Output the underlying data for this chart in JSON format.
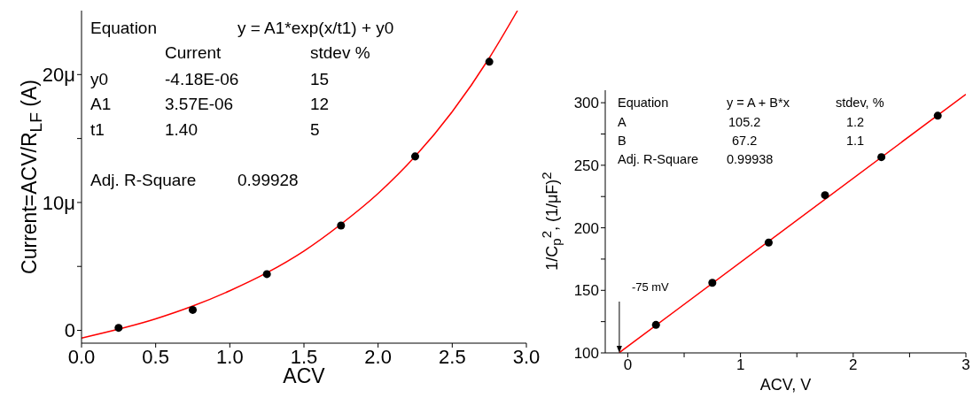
{
  "chart_data": [
    {
      "type": "scatter",
      "xlabel": "ACV",
      "ylabel": "Current=ACV/R$_{LF}$ (A)",
      "xlim": [
        0,
        3
      ],
      "xticks": [
        {
          "value": 0,
          "label": "0.0"
        },
        {
          "value": 0.5,
          "label": "0.5"
        },
        {
          "value": 1,
          "label": "1.0"
        },
        {
          "value": 1.5,
          "label": "1.5"
        },
        {
          "value": 2,
          "label": "2.0"
        },
        {
          "value": 2.5,
          "label": "2.5"
        },
        {
          "value": 3,
          "label": "3.0"
        }
      ],
      "ylim": [
        -1,
        25
      ],
      "yticks": [
        0,
        {
          "value": 5,
          "label": null
        },
        {
          "value": 10,
          "label": "10μ"
        },
        {
          "value": 15,
          "label": null
        },
        {
          "value": 20,
          "label": "20μ"
        }
      ],
      "series": [
        {
          "color": "#000000",
          "marker": "circle",
          "x": [
            0.25,
            0.75,
            1.25,
            1.75,
            2.25,
            2.75
          ],
          "values": [
            0.2,
            1.6,
            4.4,
            8.2,
            13.6,
            21.0
          ]
        },
        {
          "type": "line",
          "color": "#ff0000",
          "marker": "none",
          "x": [
            0,
            0.5,
            0.75,
            1,
            1.25,
            1.5,
            1.75,
            2,
            2.25,
            2.5,
            2.75,
            2.94
          ],
          "values": [
            -0.6,
            0.9,
            1.9,
            3.1,
            4.5,
            6.2,
            8.3,
            10.7,
            13.6,
            17.1,
            21.3,
            25.0
          ]
        }
      ],
      "annotations": [
        "Equation",
        "y = A1*exp(x/t1) + y0",
        "Current",
        "stdev %",
        "y0",
        "-4.18E-06",
        "15",
        "A1",
        "3.57E-06",
        "12",
        "t1",
        "1.40",
        "5",
        "Adj. R-Square",
        "0.99928"
      ]
    },
    {
      "type": "scatter",
      "xlabel": "ACV, V",
      "ylabel": "1/C$_{p}$$^{2}$, (1/μF)$^{2}$",
      "xlim": [
        -0.2,
        3
      ],
      "xticks": [
        0,
        {
          "value": 0.5,
          "label": null
        },
        1,
        {
          "value": 1.5,
          "label": null
        },
        2,
        {
          "value": 2.5,
          "label": null
        },
        3
      ],
      "ylim": [
        100,
        310
      ],
      "yticks": [
        100,
        {
          "value": 125,
          "label": null
        },
        150,
        {
          "value": 175,
          "label": null
        },
        200,
        {
          "value": 225,
          "label": null
        },
        250,
        {
          "value": 275,
          "label": null
        },
        300
      ],
      "series": [
        {
          "color": "#000000",
          "marker": "circle",
          "x": [
            0.25,
            0.75,
            1.25,
            1.75,
            2.25,
            2.75
          ],
          "values": [
            122.4,
            156,
            188.2,
            226.1,
            256.5,
            289.6
          ]
        },
        {
          "type": "line",
          "color": "#ff0000",
          "marker": "none",
          "x": [
            -0.075,
            3
          ],
          "values": [
            100.2,
            306.8
          ]
        }
      ],
      "annotations": [
        "Equation",
        "y = A + B*x",
        "stdev, %",
        "A",
        "105.2",
        "1.2",
        "B",
        "67.2",
        "1.1",
        "Adj. R-Square",
        "0.99938",
        {
          "text": "-75 mV",
          "x": -0.075,
          "y": 100
        }
      ]
    }
  ]
}
